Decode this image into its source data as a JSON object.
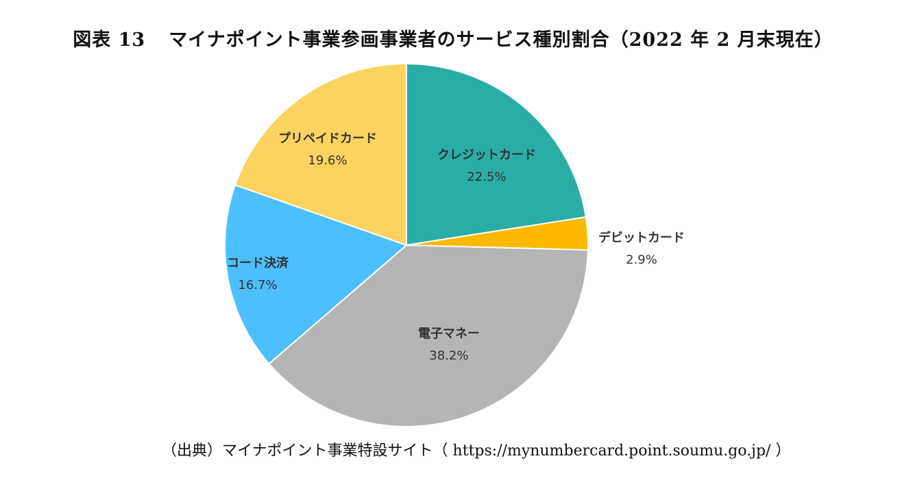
{
  "title": {
    "label": "図表 13",
    "text": "マイナポイント事業参画事業者のサービス種別割合（2022 年 2 月末現在）"
  },
  "source": "（出典）マイナポイント事業特設サイト（ https://mynumbercard.point.soumu.go.jp/ ）",
  "chart_data": {
    "type": "pie",
    "title": "マイナポイント事業参画事業者のサービス種別割合（2022 年 2 月末現在）",
    "start_angle": "top, clockwise",
    "slices": [
      {
        "label": "クレジットカード",
        "value": 22.5,
        "display": "22.5%",
        "color": "#2aada4"
      },
      {
        "label": "デビットカード",
        "value": 2.9,
        "display": "2.9%",
        "color": "#fbb900"
      },
      {
        "label": "電子マネー",
        "value": 38.2,
        "display": "38.2%",
        "color": "#b5b5b5"
      },
      {
        "label": "コード決済",
        "value": 16.7,
        "display": "16.7%",
        "color": "#4dbfff"
      },
      {
        "label": "プリペイドカード",
        "value": 19.6,
        "display": "19.6%",
        "color": "#fdd35f"
      }
    ]
  }
}
